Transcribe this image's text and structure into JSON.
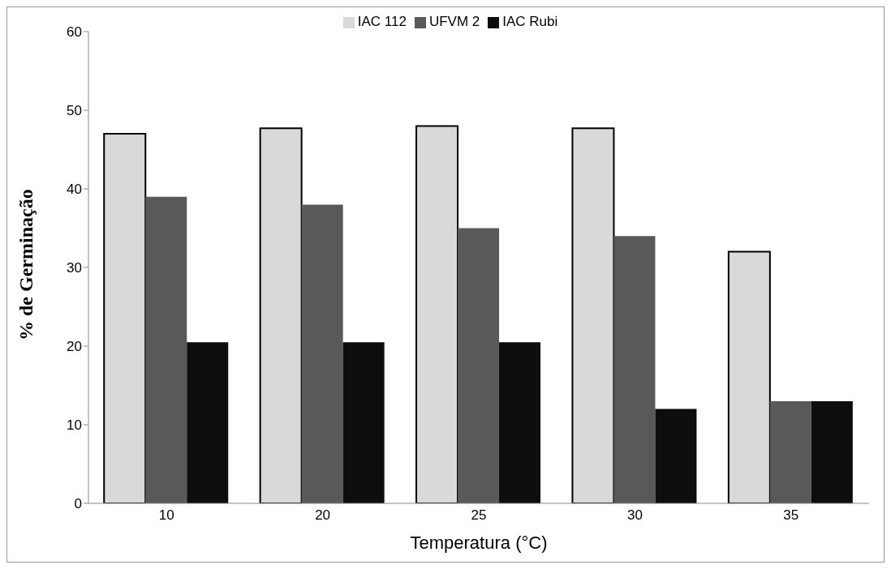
{
  "chart_data": {
    "type": "bar",
    "xlabel": "Temperatura (°C)",
    "ylabel": "% de Germinação",
    "categories": [
      "10",
      "20",
      "25",
      "30",
      "35"
    ],
    "series": [
      {
        "name": "IAC 112",
        "color": "#d9d9d9",
        "values": [
          47,
          47.7,
          48,
          47.7,
          32
        ]
      },
      {
        "name": "UFVM 2",
        "color": "#595959",
        "values": [
          39,
          38,
          35,
          34,
          13
        ]
      },
      {
        "name": "IAC Rubi",
        "color": "#0d0d0d",
        "values": [
          20.5,
          20.5,
          20.5,
          12,
          13
        ]
      }
    ],
    "ylim": [
      0,
      60
    ],
    "yticks": [
      0,
      10,
      20,
      30,
      40,
      50,
      60
    ],
    "grid": false,
    "legend": "top"
  }
}
